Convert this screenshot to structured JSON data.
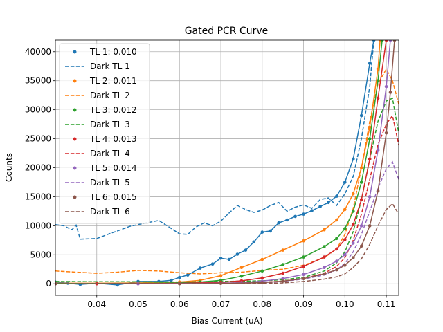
{
  "chart_data": {
    "type": "line",
    "title": "Gated PCR Curve",
    "xlabel": "Bias Current (uA)",
    "ylabel": "Counts",
    "xlim": [
      0.03,
      0.113
    ],
    "ylim": [
      -2000,
      42000
    ],
    "xticks": [
      "0.04",
      "0.05",
      "0.06",
      "0.07",
      "0.08",
      "0.09",
      "0.10",
      "0.11"
    ],
    "yticks": [
      "0",
      "5000",
      "10000",
      "15000",
      "20000",
      "25000",
      "30000",
      "35000",
      "40000"
    ],
    "grid": true,
    "legend_position": "upper-left",
    "series": [
      {
        "name": "TL 1: 0.010",
        "style": "dots-line",
        "color": "#1f77b4",
        "points": [
          [
            0.03,
            300
          ],
          [
            0.033,
            100
          ],
          [
            0.036,
            -100
          ],
          [
            0.04,
            100
          ],
          [
            0.045,
            -200
          ],
          [
            0.05,
            400
          ],
          [
            0.055,
            400
          ],
          [
            0.058,
            600
          ],
          [
            0.06,
            1100
          ],
          [
            0.062,
            1500
          ],
          [
            0.065,
            2700
          ],
          [
            0.068,
            3400
          ],
          [
            0.07,
            4400
          ],
          [
            0.072,
            4200
          ],
          [
            0.074,
            5100
          ],
          [
            0.076,
            5800
          ],
          [
            0.078,
            7200
          ],
          [
            0.08,
            8900
          ],
          [
            0.082,
            9100
          ],
          [
            0.084,
            10500
          ],
          [
            0.086,
            11000
          ],
          [
            0.088,
            11600
          ],
          [
            0.09,
            12000
          ],
          [
            0.092,
            12600
          ],
          [
            0.094,
            13300
          ],
          [
            0.096,
            14000
          ],
          [
            0.098,
            15100
          ],
          [
            0.1,
            17500
          ],
          [
            0.102,
            21500
          ],
          [
            0.104,
            29000
          ],
          [
            0.106,
            38000
          ],
          [
            0.107,
            42000
          ]
        ]
      },
      {
        "name": "Dark TL 1",
        "style": "dashed",
        "color": "#1f77b4",
        "points": [
          [
            0.03,
            10200
          ],
          [
            0.032,
            10000
          ],
          [
            0.034,
            9300
          ],
          [
            0.035,
            10100
          ],
          [
            0.036,
            7700
          ],
          [
            0.04,
            7800
          ],
          [
            0.043,
            8600
          ],
          [
            0.045,
            9100
          ],
          [
            0.048,
            9900
          ],
          [
            0.05,
            10200
          ],
          [
            0.052,
            10500
          ],
          [
            0.055,
            10900
          ],
          [
            0.057,
            10000
          ],
          [
            0.06,
            8600
          ],
          [
            0.062,
            8500
          ],
          [
            0.064,
            9800
          ],
          [
            0.066,
            10500
          ],
          [
            0.068,
            10000
          ],
          [
            0.07,
            10800
          ],
          [
            0.072,
            12200
          ],
          [
            0.074,
            13500
          ],
          [
            0.076,
            12800
          ],
          [
            0.078,
            12300
          ],
          [
            0.08,
            12700
          ],
          [
            0.082,
            13500
          ],
          [
            0.084,
            14000
          ],
          [
            0.086,
            12500
          ],
          [
            0.088,
            13200
          ],
          [
            0.09,
            13600
          ],
          [
            0.092,
            13000
          ],
          [
            0.094,
            14500
          ],
          [
            0.096,
            14800
          ],
          [
            0.098,
            13500
          ],
          [
            0.1,
            15500
          ],
          [
            0.102,
            18500
          ],
          [
            0.104,
            25000
          ],
          [
            0.106,
            34000
          ],
          [
            0.107,
            42000
          ]
        ]
      },
      {
        "name": "TL 2: 0.011",
        "style": "dots-line",
        "color": "#ff7f0e",
        "points": [
          [
            0.03,
            100
          ],
          [
            0.04,
            100
          ],
          [
            0.05,
            150
          ],
          [
            0.06,
            300
          ],
          [
            0.065,
            600
          ],
          [
            0.07,
            1400
          ],
          [
            0.075,
            2800
          ],
          [
            0.08,
            4200
          ],
          [
            0.085,
            5800
          ],
          [
            0.09,
            7400
          ],
          [
            0.095,
            9300
          ],
          [
            0.098,
            11000
          ],
          [
            0.1,
            12800
          ],
          [
            0.102,
            15500
          ],
          [
            0.104,
            20000
          ],
          [
            0.106,
            27000
          ],
          [
            0.108,
            37000
          ],
          [
            0.1085,
            42000
          ]
        ]
      },
      {
        "name": "Dark TL 2",
        "style": "dashed",
        "color": "#ff7f0e",
        "points": [
          [
            0.03,
            2200
          ],
          [
            0.035,
            2000
          ],
          [
            0.04,
            1800
          ],
          [
            0.045,
            2000
          ],
          [
            0.05,
            2300
          ],
          [
            0.055,
            2200
          ],
          [
            0.06,
            1900
          ],
          [
            0.065,
            1700
          ],
          [
            0.07,
            1900
          ],
          [
            0.075,
            2000
          ],
          [
            0.08,
            2300
          ],
          [
            0.085,
            2500
          ],
          [
            0.09,
            3200
          ],
          [
            0.095,
            4500
          ],
          [
            0.098,
            6000
          ],
          [
            0.1,
            8500
          ],
          [
            0.102,
            13000
          ],
          [
            0.104,
            20000
          ],
          [
            0.106,
            28000
          ],
          [
            0.108,
            34500
          ],
          [
            0.11,
            37000
          ],
          [
            0.1115,
            35000
          ],
          [
            0.113,
            31000
          ]
        ]
      },
      {
        "name": "TL 3: 0.012",
        "style": "dots-line",
        "color": "#2ca02c",
        "points": [
          [
            0.03,
            50
          ],
          [
            0.04,
            50
          ],
          [
            0.05,
            80
          ],
          [
            0.06,
            150
          ],
          [
            0.065,
            300
          ],
          [
            0.07,
            600
          ],
          [
            0.075,
            1300
          ],
          [
            0.08,
            2200
          ],
          [
            0.085,
            3300
          ],
          [
            0.09,
            4600
          ],
          [
            0.095,
            6400
          ],
          [
            0.098,
            7800
          ],
          [
            0.1,
            9500
          ],
          [
            0.102,
            12500
          ],
          [
            0.104,
            17500
          ],
          [
            0.106,
            25000
          ],
          [
            0.108,
            35000
          ],
          [
            0.109,
            42000
          ]
        ]
      },
      {
        "name": "Dark TL 3",
        "style": "dashed",
        "color": "#2ca02c",
        "points": [
          [
            0.03,
            400
          ],
          [
            0.04,
            350
          ],
          [
            0.05,
            350
          ],
          [
            0.06,
            300
          ],
          [
            0.07,
            400
          ],
          [
            0.08,
            500
          ],
          [
            0.085,
            700
          ],
          [
            0.09,
            1100
          ],
          [
            0.095,
            2200
          ],
          [
            0.098,
            3600
          ],
          [
            0.1,
            5500
          ],
          [
            0.102,
            9000
          ],
          [
            0.104,
            14500
          ],
          [
            0.106,
            21500
          ],
          [
            0.108,
            28000
          ],
          [
            0.11,
            31500
          ],
          [
            0.1115,
            32000
          ],
          [
            0.113,
            26000
          ]
        ]
      },
      {
        "name": "TL 4: 0.013",
        "style": "dots-line",
        "color": "#d62728",
        "points": [
          [
            0.03,
            0
          ],
          [
            0.04,
            0
          ],
          [
            0.05,
            30
          ],
          [
            0.06,
            80
          ],
          [
            0.07,
            250
          ],
          [
            0.075,
            500
          ],
          [
            0.08,
            1000
          ],
          [
            0.085,
            1800
          ],
          [
            0.09,
            3000
          ],
          [
            0.095,
            4600
          ],
          [
            0.098,
            6000
          ],
          [
            0.1,
            7600
          ],
          [
            0.102,
            10200
          ],
          [
            0.104,
            14500
          ],
          [
            0.106,
            21500
          ],
          [
            0.108,
            32000
          ],
          [
            0.11,
            42000
          ]
        ]
      },
      {
        "name": "Dark TL 4",
        "style": "dashed",
        "color": "#d62728",
        "points": [
          [
            0.03,
            0
          ],
          [
            0.06,
            50
          ],
          [
            0.07,
            100
          ],
          [
            0.08,
            250
          ],
          [
            0.085,
            450
          ],
          [
            0.09,
            900
          ],
          [
            0.095,
            1800
          ],
          [
            0.098,
            3000
          ],
          [
            0.1,
            4500
          ],
          [
            0.102,
            7500
          ],
          [
            0.104,
            12000
          ],
          [
            0.106,
            18000
          ],
          [
            0.108,
            24000
          ],
          [
            0.11,
            27500
          ],
          [
            0.1115,
            29000
          ],
          [
            0.113,
            24000
          ]
        ]
      },
      {
        "name": "TL 5: 0.014",
        "style": "dots-line",
        "color": "#9467bd",
        "points": [
          [
            0.03,
            0
          ],
          [
            0.05,
            0
          ],
          [
            0.06,
            30
          ],
          [
            0.07,
            100
          ],
          [
            0.075,
            200
          ],
          [
            0.08,
            450
          ],
          [
            0.085,
            900
          ],
          [
            0.09,
            1600
          ],
          [
            0.095,
            2800
          ],
          [
            0.098,
            3900
          ],
          [
            0.1,
            5000
          ],
          [
            0.102,
            7000
          ],
          [
            0.104,
            10000
          ],
          [
            0.106,
            15000
          ],
          [
            0.108,
            23000
          ],
          [
            0.11,
            34000
          ],
          [
            0.111,
            42000
          ]
        ]
      },
      {
        "name": "Dark TL 5",
        "style": "dashed",
        "color": "#9467bd",
        "points": [
          [
            0.03,
            0
          ],
          [
            0.07,
            30
          ],
          [
            0.08,
            150
          ],
          [
            0.085,
            400
          ],
          [
            0.09,
            800
          ],
          [
            0.095,
            1500
          ],
          [
            0.098,
            2400
          ],
          [
            0.1,
            3500
          ],
          [
            0.102,
            5500
          ],
          [
            0.104,
            8500
          ],
          [
            0.106,
            12500
          ],
          [
            0.108,
            16500
          ],
          [
            0.11,
            19800
          ],
          [
            0.1115,
            21000
          ],
          [
            0.113,
            18000
          ]
        ]
      },
      {
        "name": "TL 6: 0.015",
        "style": "dots-line",
        "color": "#8c564b",
        "points": [
          [
            0.03,
            0
          ],
          [
            0.06,
            0
          ],
          [
            0.07,
            50
          ],
          [
            0.08,
            200
          ],
          [
            0.085,
            450
          ],
          [
            0.09,
            900
          ],
          [
            0.095,
            1700
          ],
          [
            0.098,
            2400
          ],
          [
            0.1,
            3200
          ],
          [
            0.102,
            4500
          ],
          [
            0.104,
            6500
          ],
          [
            0.106,
            10000
          ],
          [
            0.108,
            16000
          ],
          [
            0.11,
            26000
          ],
          [
            0.111,
            33000
          ],
          [
            0.112,
            42000
          ]
        ]
      },
      {
        "name": "Dark TL 6",
        "style": "dashed",
        "color": "#8c564b",
        "points": [
          [
            0.03,
            0
          ],
          [
            0.08,
            50
          ],
          [
            0.085,
            150
          ],
          [
            0.09,
            400
          ],
          [
            0.095,
            800
          ],
          [
            0.098,
            1200
          ],
          [
            0.1,
            1700
          ],
          [
            0.102,
            2800
          ],
          [
            0.104,
            4300
          ],
          [
            0.106,
            6800
          ],
          [
            0.108,
            10000
          ],
          [
            0.11,
            12800
          ],
          [
            0.1115,
            13800
          ],
          [
            0.113,
            12000
          ]
        ]
      }
    ]
  }
}
